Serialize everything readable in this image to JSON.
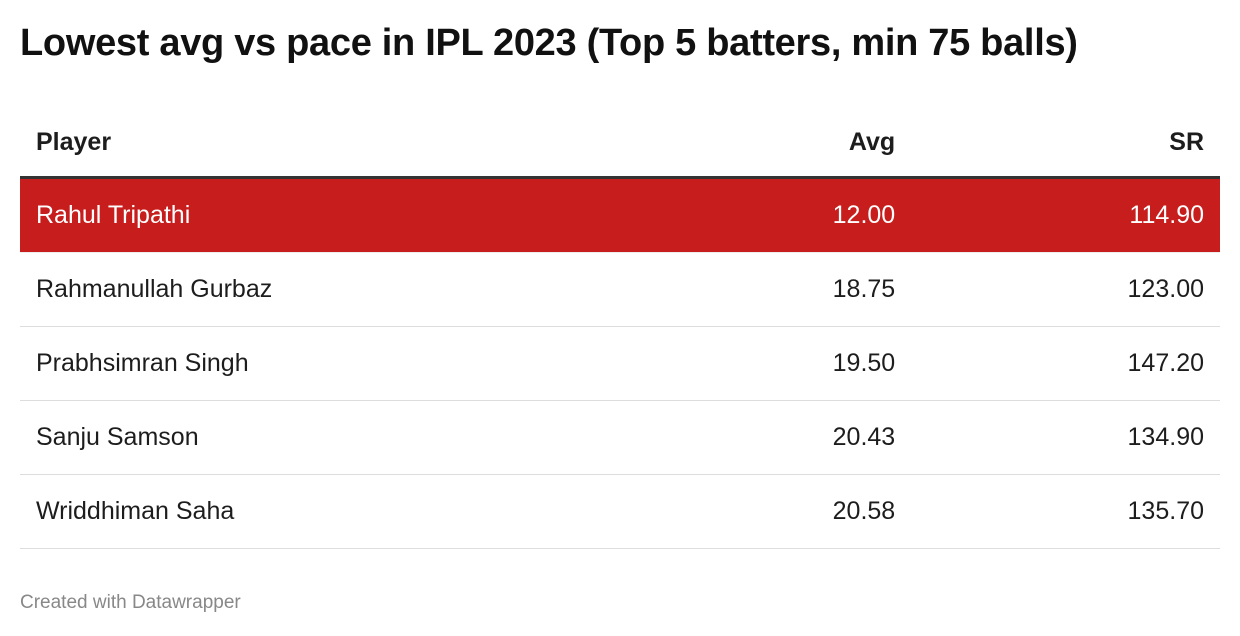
{
  "title": "Lowest avg vs pace in IPL 2023 (Top 5 batters, min 75 balls)",
  "footer": "Created with Datawrapper",
  "colors": {
    "highlight": "#c71e1d",
    "header_rule": "#333333"
  },
  "chart_data": {
    "type": "table",
    "title": "Lowest avg vs pace in IPL 2023 (Top 5 batters, min 75 balls)",
    "columns": [
      "Player",
      "Avg",
      "SR"
    ],
    "rows": [
      [
        "Rahul Tripathi",
        "12.00",
        "114.90"
      ],
      [
        "Rahmanullah Gurbaz",
        "18.75",
        "123.00"
      ],
      [
        "Prabhsimran Singh",
        "19.50",
        "147.20"
      ],
      [
        "Sanju Samson",
        "20.43",
        "134.90"
      ],
      [
        "Wriddhiman Saha",
        "20.58",
        "135.70"
      ]
    ],
    "highlighted_row": 0
  }
}
